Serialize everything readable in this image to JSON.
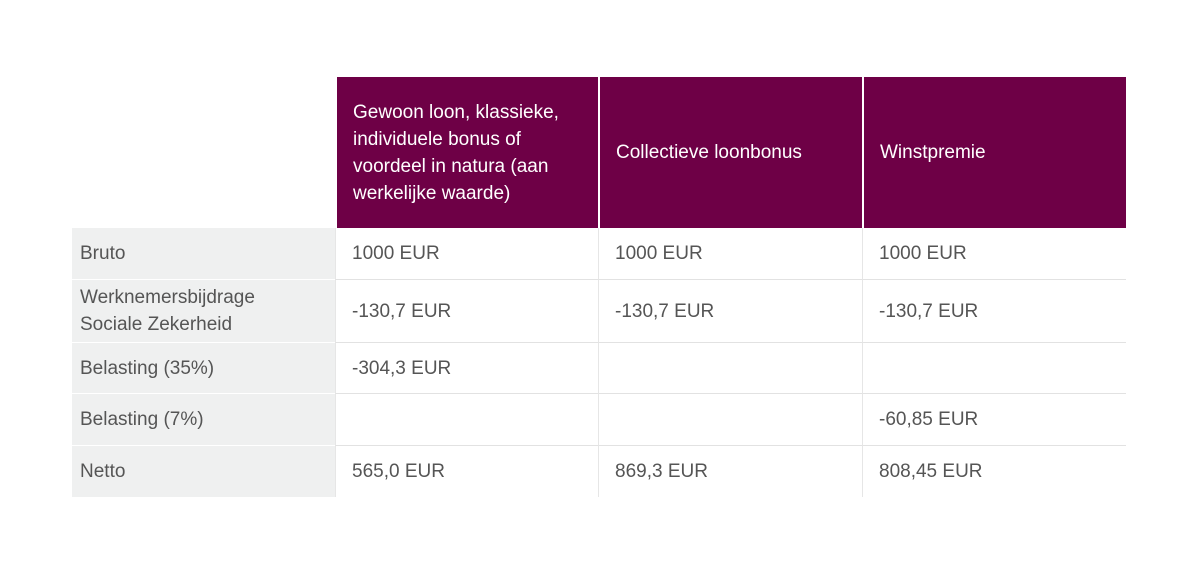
{
  "table": {
    "columns": [
      "Gewoon loon,  klassieke, individuele bonus of voordeel in natura (aan werkelijke waarde)",
      "Collectieve loonbonus",
      "Winstpremie"
    ],
    "rows": [
      {
        "label": "Bruto",
        "cells": [
          "1000 EUR",
          "1000 EUR",
          "1000 EUR"
        ]
      },
      {
        "label": "Werknemersbijdrage Sociale Zekerheid",
        "cells": [
          "-130,7 EUR",
          "-130,7 EUR",
          "-130,7 EUR"
        ]
      },
      {
        "label": "Belasting (35%)",
        "cells": [
          "-304,3 EUR",
          null,
          null
        ]
      },
      {
        "label": "Belasting (7%)",
        "cells": [
          null,
          null,
          "-60,85 EUR"
        ]
      },
      {
        "label": "Netto",
        "cells": [
          "565,0 EUR",
          "869,3 EUR",
          "808,45 EUR"
        ]
      }
    ]
  }
}
